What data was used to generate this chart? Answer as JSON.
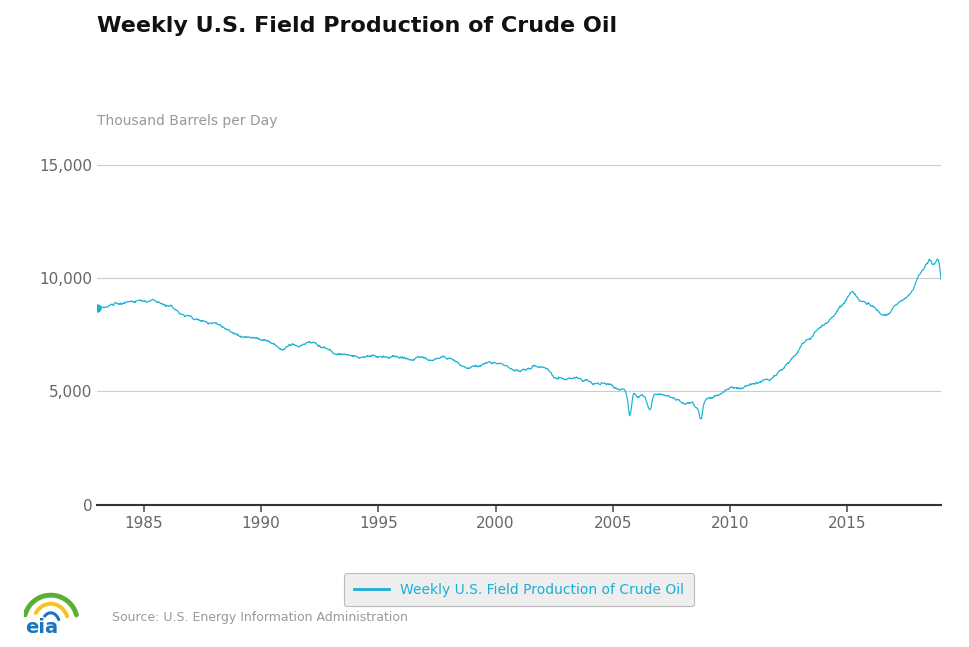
{
  "title": "Weekly U.S. Field Production of Crude Oil",
  "ylabel": "Thousand Barrels per Day",
  "legend_label": "Weekly U.S. Field Production of Crude Oil",
  "source_text": "Source: U.S. Energy Information Administration",
  "line_color": "#1ab0d5",
  "background_color": "#ffffff",
  "ylim": [
    0,
    16000
  ],
  "yticks": [
    0,
    5000,
    10000,
    15000
  ],
  "ytick_labels": [
    "0",
    "5,000",
    "10,000",
    "15,000"
  ],
  "xlim": [
    1983.0,
    2019.0
  ],
  "xticks": [
    1985,
    1990,
    1995,
    2000,
    2005,
    2010,
    2015
  ]
}
